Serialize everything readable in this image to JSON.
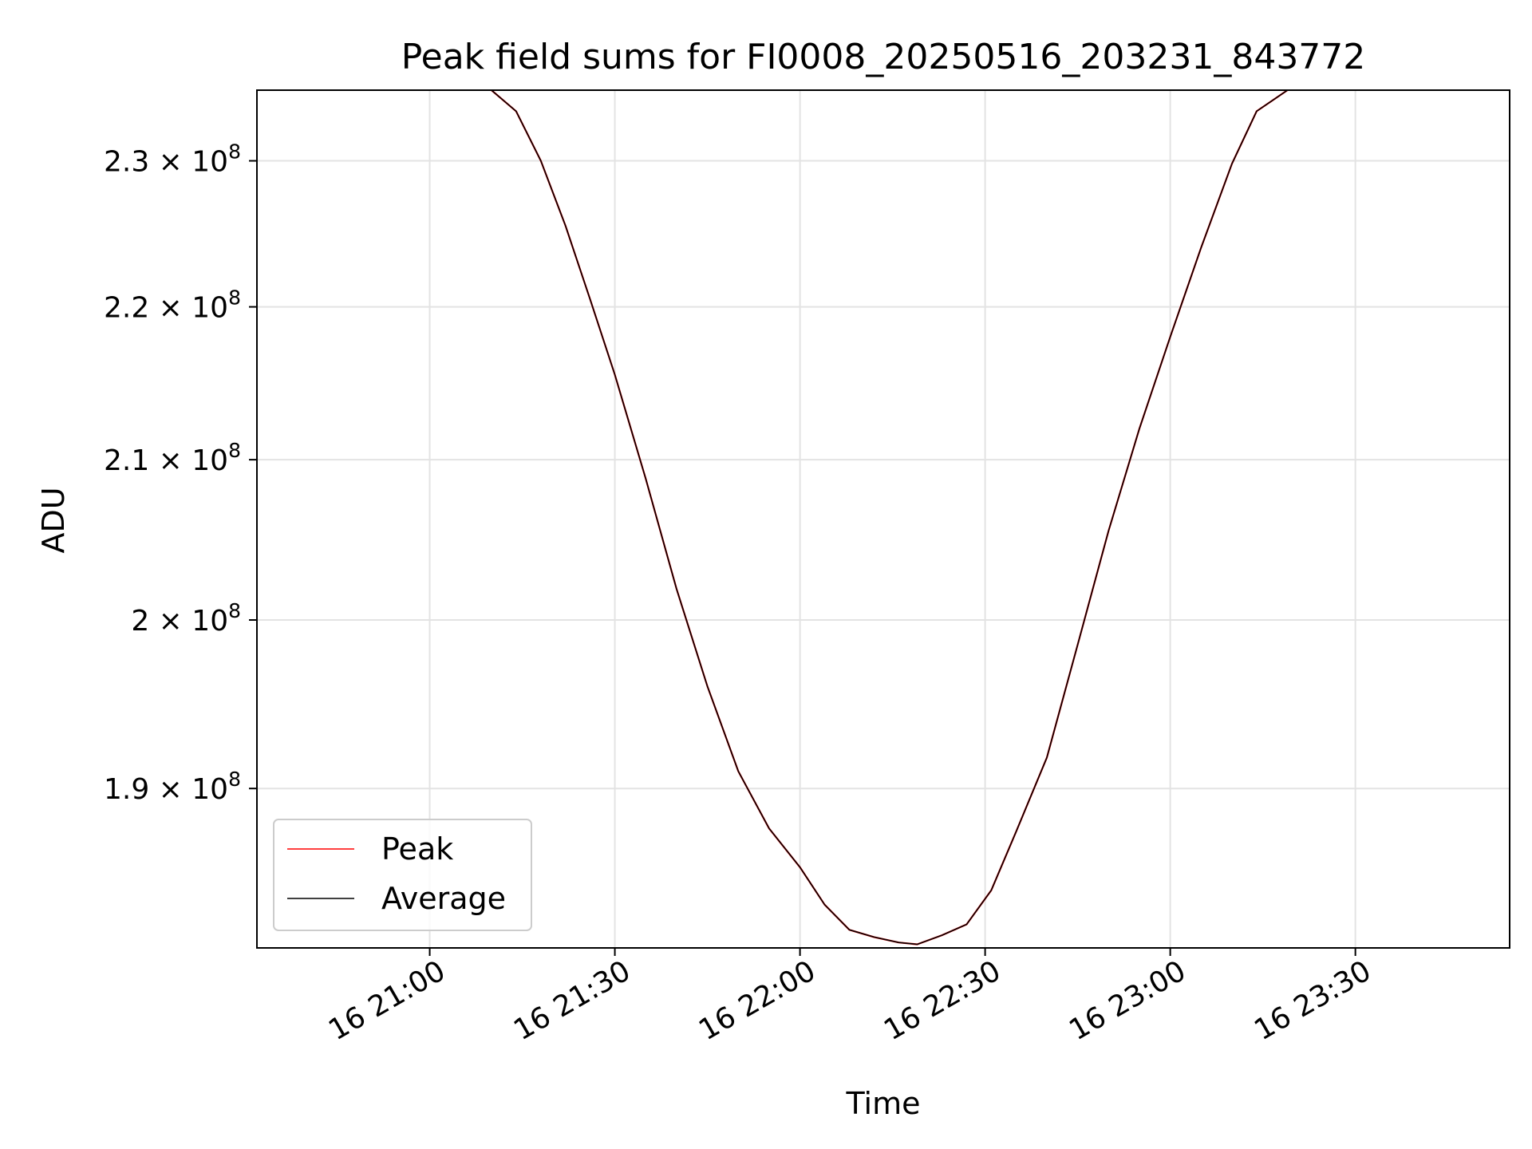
{
  "chart_data": {
    "type": "line",
    "title": "Peak field sums for FI0008_20250516_203231_843772",
    "xlabel": "Time",
    "ylabel": "ADU",
    "x_ticks": [
      {
        "time": "2025-05-16 21:00",
        "label": "16 21:00"
      },
      {
        "time": "2025-05-16 21:30",
        "label": "16 21:30"
      },
      {
        "time": "2025-05-16 22:00",
        "label": "16 22:00"
      },
      {
        "time": "2025-05-16 22:30",
        "label": "16 22:30"
      },
      {
        "time": "2025-05-16 23:00",
        "label": "16 23:00"
      },
      {
        "time": "2025-05-16 23:30",
        "label": "16 23:30"
      }
    ],
    "y_ticks": [
      {
        "value": 190000000,
        "mantissa": "1.9"
      },
      {
        "value": 200000000,
        "mantissa": "2"
      },
      {
        "value": 210000000,
        "mantissa": "2.1"
      },
      {
        "value": 220000000,
        "mantissa": "2.2"
      },
      {
        "value": 230000000,
        "mantissa": "2.3"
      }
    ],
    "y_tick_exponent": "8",
    "y_scale": "log",
    "xlim": [
      "2025-05-16 20:32",
      "2025-05-16 23:55"
    ],
    "ylim": [
      181000000,
      235000000
    ],
    "grid": true,
    "legend_position": "lower-left",
    "x": [
      "2025-05-16 21:10",
      "2025-05-16 21:14",
      "2025-05-16 21:18",
      "2025-05-16 21:22",
      "2025-05-16 21:26",
      "2025-05-16 21:30",
      "2025-05-16 21:35",
      "2025-05-16 21:40",
      "2025-05-16 21:45",
      "2025-05-16 21:50",
      "2025-05-16 21:55",
      "2025-05-16 22:00",
      "2025-05-16 22:04",
      "2025-05-16 22:08",
      "2025-05-16 22:12",
      "2025-05-16 22:16",
      "2025-05-16 22:19",
      "2025-05-16 22:23",
      "2025-05-16 22:27",
      "2025-05-16 22:31",
      "2025-05-16 22:35",
      "2025-05-16 22:40",
      "2025-05-16 22:45",
      "2025-05-16 22:50",
      "2025-05-16 22:55",
      "2025-05-16 23:00",
      "2025-05-16 23:05",
      "2025-05-16 23:10",
      "2025-05-16 23:14",
      "2025-05-16 23:19"
    ],
    "series": [
      {
        "name": "Peak",
        "color": "#ff0000",
        "values": [
          235000000,
          233500000,
          230000000,
          225500000,
          220500000,
          215500000,
          208800000,
          201900000,
          196000000,
          191000000,
          187700000,
          185500000,
          183400000,
          182000000,
          181600000,
          181300000,
          181200000,
          181700000,
          182300000,
          184200000,
          187500000,
          191800000,
          198500000,
          205500000,
          212000000,
          218000000,
          224000000,
          229800000,
          233500000,
          235000000
        ]
      },
      {
        "name": "Average",
        "color": "#000000",
        "values": [
          235000000,
          233500000,
          230000000,
          225500000,
          220500000,
          215500000,
          208800000,
          201900000,
          196000000,
          191000000,
          187700000,
          185500000,
          183400000,
          182000000,
          181600000,
          181300000,
          181200000,
          181700000,
          182300000,
          184200000,
          187500000,
          191800000,
          198500000,
          205500000,
          212000000,
          218000000,
          224000000,
          229800000,
          233500000,
          235000000
        ]
      }
    ]
  }
}
